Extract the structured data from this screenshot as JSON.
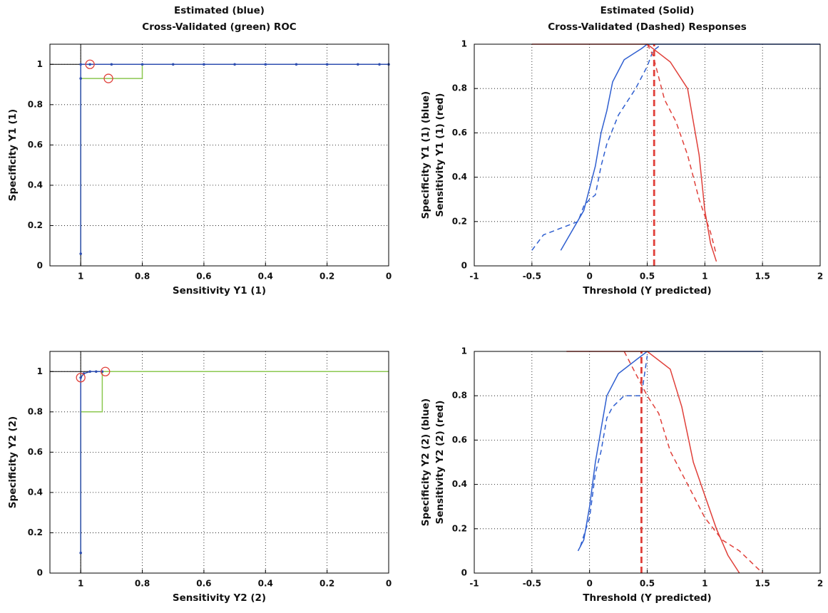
{
  "chart_data": [
    {
      "type": "roc",
      "title": [
        "Estimated (blue)",
        "Cross-Validated (green) ROC"
      ],
      "xlabel": "Sensitivity Y1 (1)",
      "ylabel": "Specificity Y1 (1)",
      "xlim": [
        0,
        1.1
      ],
      "xdir": "reverse",
      "ylim": [
        0,
        1.1
      ],
      "xticks": [
        0,
        0.2,
        0.4,
        0.6,
        0.8,
        1
      ],
      "yticks": [
        0,
        0.2,
        0.4,
        0.6,
        0.8,
        1
      ],
      "grid": true,
      "reference_lines": {
        "x": 1,
        "y": 1
      },
      "series": [
        {
          "color": "#8cc850",
          "style": "solid",
          "x": [
            1,
            1,
            0.8,
            0.8,
            0
          ],
          "values": [
            0.06,
            0.93,
            0.93,
            1,
            1
          ]
        },
        {
          "color": "#2f4fb0",
          "style": "dotted-marker",
          "x": [
            1,
            1,
            1,
            0.97,
            0.9,
            0.8,
            0.7,
            0.6,
            0.5,
            0.4,
            0.3,
            0.2,
            0.1,
            0.03,
            0
          ],
          "values": [
            0.06,
            0.93,
            1,
            1,
            1,
            1,
            1,
            1,
            1,
            1,
            1,
            1,
            1,
            1,
            1
          ]
        },
        {
          "color": "#e0403a",
          "style": "circle",
          "x": [
            0.97,
            0.91
          ],
          "values": [
            1,
            0.93
          ]
        }
      ]
    },
    {
      "type": "response",
      "title": [
        "Estimated (Solid)",
        "Cross-Validated (Dashed) Responses"
      ],
      "xlabel": "Threshold (Y predicted)",
      "ylabel": [
        "Specificity Y1 (1) (blue)",
        "Sensitivity Y1 (1) (red)"
      ],
      "xlim": [
        -1,
        2
      ],
      "ylim": [
        0,
        1
      ],
      "xticks": [
        -1,
        -0.5,
        0,
        0.5,
        1,
        1.5,
        2
      ],
      "yticks": [
        0,
        0.2,
        0.4,
        0.6,
        0.8,
        1
      ],
      "grid": true,
      "series": [
        {
          "color": "#2f5fd0",
          "style": "solid",
          "x": [
            -0.25,
            -0.05,
            0.05,
            0.1,
            0.15,
            0.2,
            0.3,
            0.45,
            0.5,
            2
          ],
          "values": [
            0.07,
            0.25,
            0.45,
            0.6,
            0.7,
            0.83,
            0.93,
            0.98,
            1,
            1
          ]
        },
        {
          "color": "#2f5fd0",
          "style": "dashed",
          "x": [
            -0.5,
            -0.4,
            -0.1,
            -0.05,
            0,
            0.05,
            0.1,
            0.15,
            0.25,
            0.4,
            0.5,
            0.55,
            0.6
          ],
          "values": [
            0.07,
            0.14,
            0.2,
            0.27,
            0.3,
            0.32,
            0.45,
            0.55,
            0.68,
            0.8,
            0.9,
            0.97,
            0.99
          ]
        },
        {
          "color": "#e0403a",
          "style": "solid",
          "x": [
            -0.5,
            0.5,
            0.55,
            0.7,
            0.85,
            0.95,
            1,
            1.05,
            1.1
          ],
          "values": [
            1,
            1,
            0.98,
            0.92,
            0.8,
            0.5,
            0.25,
            0.1,
            0.02
          ]
        },
        {
          "color": "#e0403a",
          "style": "dashed",
          "x": [
            0.5,
            0.55,
            0.65,
            0.75,
            0.85,
            0.95,
            1.05,
            1.1
          ],
          "values": [
            1,
            0.95,
            0.75,
            0.65,
            0.5,
            0.3,
            0.15,
            0.05
          ]
        },
        {
          "color": "#e0403a",
          "style": "thick-dashed",
          "x": [
            0.56,
            0.56
          ],
          "values": [
            0,
            1
          ]
        }
      ]
    },
    {
      "type": "roc",
      "xlabel": "Sensitivity Y2 (2)",
      "ylabel": "Specificity Y2 (2)",
      "xlim": [
        0,
        1.1
      ],
      "xdir": "reverse",
      "ylim": [
        0,
        1.1
      ],
      "xticks": [
        0,
        0.2,
        0.4,
        0.6,
        0.8,
        1
      ],
      "yticks": [
        0,
        0.2,
        0.4,
        0.6,
        0.8,
        1
      ],
      "grid": true,
      "reference_lines": {
        "x": 1,
        "y": 1
      },
      "series": [
        {
          "color": "#8cc850",
          "style": "solid",
          "x": [
            1,
            1,
            0.93,
            0.93,
            0
          ],
          "values": [
            0.1,
            0.8,
            0.8,
            1,
            1
          ]
        },
        {
          "color": "#2f4fb0",
          "style": "dotted-marker",
          "x": [
            1,
            1,
            0.99,
            0.97,
            0.95,
            0.93
          ],
          "values": [
            0.1,
            0.97,
            0.99,
            1,
            1,
            1
          ]
        },
        {
          "color": "#e0403a",
          "style": "circle",
          "x": [
            1,
            0.92
          ],
          "values": [
            0.97,
            1
          ]
        }
      ]
    },
    {
      "type": "response",
      "xlabel": "Threshold (Y predicted)",
      "ylabel": [
        "Specificity Y2 (2) (blue)",
        "Sensitivity Y2 (2) (red)"
      ],
      "xlim": [
        -1,
        2
      ],
      "ylim": [
        0,
        1
      ],
      "xticks": [
        -1,
        -0.5,
        0,
        0.5,
        1,
        1.5,
        2
      ],
      "yticks": [
        0,
        0.2,
        0.4,
        0.6,
        0.8,
        1
      ],
      "grid": true,
      "series": [
        {
          "color": "#2f5fd0",
          "style": "solid",
          "x": [
            -0.1,
            -0.05,
            0,
            0.05,
            0.1,
            0.15,
            0.25,
            0.4,
            0.5,
            1.5
          ],
          "values": [
            0.1,
            0.15,
            0.3,
            0.5,
            0.65,
            0.8,
            0.9,
            0.96,
            1,
            1
          ]
        },
        {
          "color": "#2f5fd0",
          "style": "dashed",
          "x": [
            -0.08,
            0,
            0.05,
            0.1,
            0.15,
            0.2,
            0.3,
            0.45,
            0.5
          ],
          "values": [
            0.12,
            0.25,
            0.45,
            0.55,
            0.7,
            0.75,
            0.8,
            0.8,
            0.98
          ]
        },
        {
          "color": "#e0403a",
          "style": "solid",
          "x": [
            -0.2,
            0.5,
            0.7,
            0.8,
            0.9,
            1,
            1.1,
            1.2,
            1.3
          ],
          "values": [
            1,
            1,
            0.92,
            0.75,
            0.5,
            0.35,
            0.2,
            0.08,
            0
          ]
        },
        {
          "color": "#e0403a",
          "style": "dashed",
          "x": [
            0.3,
            0.4,
            0.5,
            0.6,
            0.7,
            0.8,
            0.9,
            1,
            1.15,
            1.3,
            1.5
          ],
          "values": [
            1,
            0.9,
            0.8,
            0.72,
            0.55,
            0.45,
            0.35,
            0.25,
            0.15,
            0.1,
            0
          ]
        },
        {
          "color": "#e0403a",
          "style": "thick-dashed",
          "x": [
            0.45,
            0.45
          ],
          "values": [
            0,
            1
          ]
        }
      ]
    }
  ]
}
